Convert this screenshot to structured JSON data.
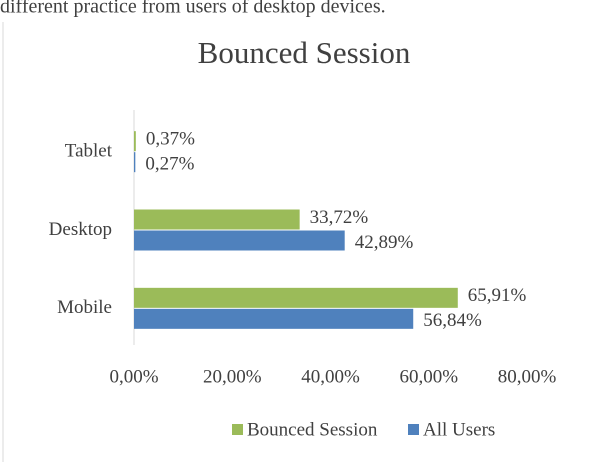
{
  "document": {
    "text": "different practice from users of desktop devices."
  },
  "chart_data": {
    "type": "hbar",
    "title": "Bounced Session",
    "categories": [
      "Mobile",
      "Desktop",
      "Tablet"
    ],
    "series": [
      {
        "name": "Bounced Session",
        "color": "#9bbb59",
        "values": [
          65.91,
          33.72,
          0.37
        ],
        "value_labels": [
          "65,91%",
          "33,72%",
          "0,37%"
        ]
      },
      {
        "name": "All Users",
        "color": "#4f81bd",
        "values": [
          56.84,
          42.89,
          0.27
        ],
        "value_labels": [
          "56,84%",
          "42,89%",
          "0,27%"
        ]
      }
    ],
    "xlim": [
      0,
      80
    ],
    "xticks": [
      {
        "value": 0,
        "label": "0,00%"
      },
      {
        "value": 20,
        "label": "20,00%"
      },
      {
        "value": 40,
        "label": "40,00%"
      },
      {
        "value": 60,
        "label": "60,00%"
      },
      {
        "value": 80,
        "label": "80,00%"
      }
    ],
    "grid": false,
    "legend": "bottom"
  }
}
